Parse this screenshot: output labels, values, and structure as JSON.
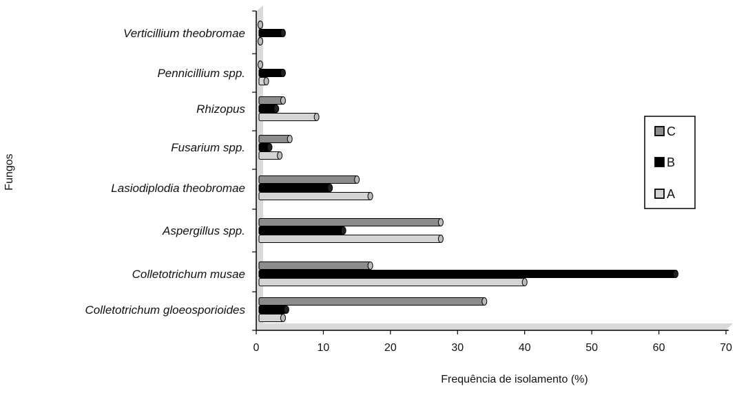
{
  "chart_data": {
    "type": "bar",
    "orientation": "horizontal",
    "title": "",
    "xlabel": "Frequência de isolamento (%)",
    "ylabel": "Fungos",
    "xlim": [
      0,
      70
    ],
    "xticks": [
      "0",
      "10",
      "20",
      "30",
      "40",
      "50",
      "60",
      "70"
    ],
    "grid": false,
    "legend_position": "right",
    "categories": [
      "Verticillium theobromae",
      "Pennicillium spp.",
      "Rhizopus",
      "Fusarium spp.",
      "Lasiodiplodia theobromae",
      "Aspergillus spp.",
      "Colletotrichum musae",
      "Colletotrichum gloeosporioides"
    ],
    "series": [
      {
        "name": "C",
        "color": "#8c8c8c",
        "values": [
          0,
          0.5,
          4,
          5,
          15,
          27.5,
          17,
          34
        ]
      },
      {
        "name": "B",
        "color": "#000000",
        "values": [
          4,
          4,
          3,
          2,
          11,
          13,
          62.5,
          4.5
        ]
      },
      {
        "name": "A",
        "color": "#d4d4d4",
        "values": [
          0.5,
          1.5,
          9,
          3.5,
          17,
          27.5,
          40,
          4
        ]
      }
    ]
  }
}
